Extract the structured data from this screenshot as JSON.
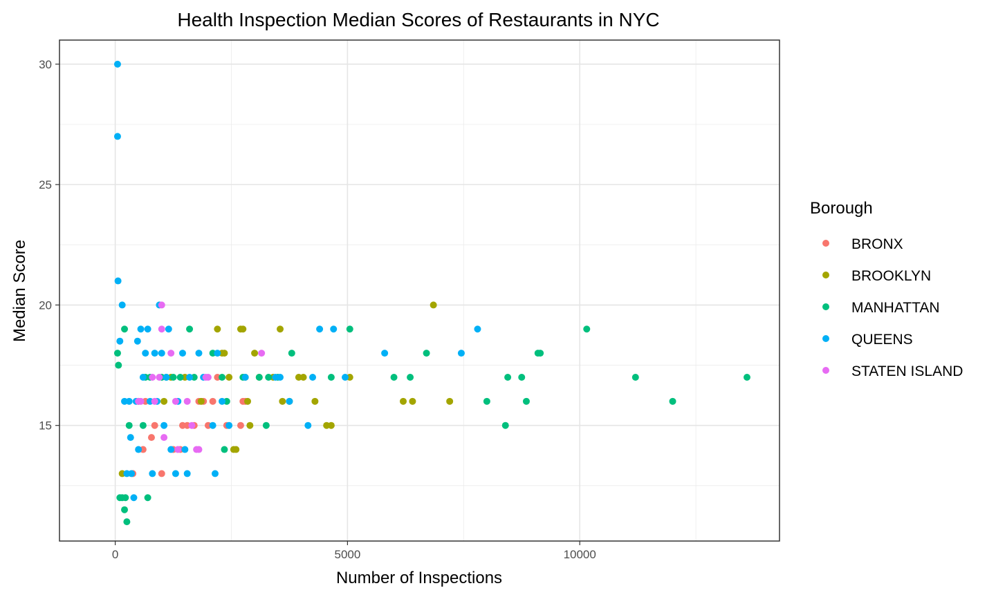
{
  "chart_data": {
    "type": "scatter",
    "title": "Health Inspection Median Scores of Restaurants in NYC",
    "xlabel": "Number of Inspections",
    "ylabel": "Median Score",
    "xlim": [
      -1200,
      14300
    ],
    "ylim": [
      10.2,
      31
    ],
    "xticks": [
      0,
      5000,
      10000
    ],
    "xtick_labels": [
      "0",
      "5000",
      "10000"
    ],
    "yticks": [
      15,
      20,
      25,
      30
    ],
    "ytick_labels": [
      "15",
      "20",
      "25",
      "30"
    ],
    "grid": true,
    "legend": {
      "title": "Borough",
      "position": "right"
    },
    "series": [
      {
        "name": "BRONX",
        "color": "#F8766D",
        "points": [
          [
            380,
            13
          ],
          [
            850,
            15
          ],
          [
            780,
            14.5
          ],
          [
            1000,
            13
          ],
          [
            1450,
            15
          ],
          [
            1550,
            15
          ],
          [
            1700,
            15
          ],
          [
            1800,
            16
          ],
          [
            1900,
            16
          ],
          [
            2000,
            15
          ],
          [
            2100,
            16
          ],
          [
            2200,
            17
          ],
          [
            2700,
            15
          ],
          [
            2750,
            16
          ],
          [
            2800,
            16
          ],
          [
            1250,
            14
          ],
          [
            1400,
            14
          ],
          [
            600,
            14
          ],
          [
            650,
            16
          ],
          [
            2400,
            15
          ]
        ]
      },
      {
        "name": "BROOKLYN",
        "color": "#A3A500",
        "points": [
          [
            150,
            13
          ],
          [
            500,
            16
          ],
          [
            1050,
            16
          ],
          [
            1200,
            17
          ],
          [
            1500,
            17
          ],
          [
            1850,
            16
          ],
          [
            2200,
            19
          ],
          [
            2300,
            18
          ],
          [
            2350,
            18
          ],
          [
            2450,
            17
          ],
          [
            2550,
            14
          ],
          [
            2600,
            14
          ],
          [
            2700,
            19
          ],
          [
            2750,
            19
          ],
          [
            2800,
            17
          ],
          [
            2850,
            16
          ],
          [
            2900,
            15
          ],
          [
            3000,
            18
          ],
          [
            3100,
            17
          ],
          [
            3400,
            17
          ],
          [
            3550,
            19
          ],
          [
            3600,
            16
          ],
          [
            3750,
            16
          ],
          [
            3950,
            17
          ],
          [
            4050,
            17
          ],
          [
            4300,
            16
          ],
          [
            4550,
            15
          ],
          [
            4650,
            15
          ],
          [
            5050,
            17
          ],
          [
            6850,
            20
          ],
          [
            6200,
            16
          ],
          [
            6400,
            16
          ],
          [
            7200,
            16
          ]
        ]
      },
      {
        "name": "MANHATTAN",
        "color": "#00BF7D",
        "points": [
          [
            50,
            18
          ],
          [
            70,
            17.5
          ],
          [
            100,
            12
          ],
          [
            150,
            12
          ],
          [
            200,
            19
          ],
          [
            200,
            11.5
          ],
          [
            220,
            12
          ],
          [
            250,
            11
          ],
          [
            300,
            15
          ],
          [
            600,
            15
          ],
          [
            650,
            17
          ],
          [
            700,
            12
          ],
          [
            750,
            17
          ],
          [
            1000,
            17
          ],
          [
            1100,
            17
          ],
          [
            1250,
            17
          ],
          [
            1400,
            17
          ],
          [
            1600,
            19
          ],
          [
            1700,
            17
          ],
          [
            2100,
            18
          ],
          [
            2300,
            17
          ],
          [
            2350,
            14
          ],
          [
            2400,
            16
          ],
          [
            2750,
            17
          ],
          [
            3100,
            17
          ],
          [
            3250,
            15
          ],
          [
            3300,
            17
          ],
          [
            3500,
            17
          ],
          [
            3800,
            18
          ],
          [
            4650,
            17
          ],
          [
            5050,
            19
          ],
          [
            6000,
            17
          ],
          [
            6350,
            17
          ],
          [
            6700,
            18
          ],
          [
            8000,
            16
          ],
          [
            8400,
            15
          ],
          [
            8450,
            17
          ],
          [
            8750,
            17
          ],
          [
            8850,
            16
          ],
          [
            9100,
            18
          ],
          [
            9150,
            18
          ],
          [
            10150,
            19
          ],
          [
            11200,
            17
          ],
          [
            12000,
            16
          ],
          [
            13600,
            17
          ]
        ]
      },
      {
        "name": "QUEENS",
        "color": "#00B0F6",
        "points": [
          [
            50,
            30
          ],
          [
            50,
            27
          ],
          [
            60,
            21
          ],
          [
            100,
            18.5
          ],
          [
            150,
            20
          ],
          [
            200,
            16
          ],
          [
            250,
            13
          ],
          [
            300,
            16
          ],
          [
            330,
            14.5
          ],
          [
            350,
            13
          ],
          [
            400,
            12
          ],
          [
            450,
            16
          ],
          [
            480,
            18.5
          ],
          [
            500,
            14
          ],
          [
            550,
            19
          ],
          [
            600,
            17
          ],
          [
            650,
            18
          ],
          [
            700,
            19
          ],
          [
            750,
            16
          ],
          [
            800,
            13
          ],
          [
            850,
            18
          ],
          [
            900,
            16
          ],
          [
            950,
            20
          ],
          [
            1000,
            18
          ],
          [
            1050,
            15
          ],
          [
            1100,
            17
          ],
          [
            1150,
            19
          ],
          [
            1200,
            14
          ],
          [
            1300,
            13
          ],
          [
            1350,
            16
          ],
          [
            1450,
            18
          ],
          [
            1500,
            14
          ],
          [
            1550,
            13
          ],
          [
            1600,
            17
          ],
          [
            1800,
            18
          ],
          [
            1900,
            17
          ],
          [
            2100,
            15
          ],
          [
            2150,
            13
          ],
          [
            2200,
            18
          ],
          [
            2300,
            16
          ],
          [
            2450,
            15
          ],
          [
            2800,
            17
          ],
          [
            3450,
            17
          ],
          [
            3550,
            17
          ],
          [
            3750,
            16
          ],
          [
            4150,
            15
          ],
          [
            4250,
            17
          ],
          [
            4400,
            19
          ],
          [
            4700,
            19
          ],
          [
            4950,
            17
          ],
          [
            5800,
            18
          ],
          [
            7450,
            18
          ],
          [
            7800,
            19
          ]
        ]
      },
      {
        "name": "STATEN ISLAND",
        "color": "#E76BF3",
        "points": [
          [
            500,
            16
          ],
          [
            550,
            16
          ],
          [
            800,
            17
          ],
          [
            850,
            16
          ],
          [
            950,
            17
          ],
          [
            1000,
            20
          ],
          [
            1000,
            19
          ],
          [
            1050,
            14.5
          ],
          [
            1200,
            18
          ],
          [
            1300,
            16
          ],
          [
            1550,
            16
          ],
          [
            1650,
            15
          ],
          [
            1800,
            14
          ],
          [
            2000,
            17
          ],
          [
            3150,
            18
          ],
          [
            1750,
            14
          ],
          [
            1350,
            14
          ],
          [
            1950,
            17
          ]
        ]
      }
    ]
  }
}
